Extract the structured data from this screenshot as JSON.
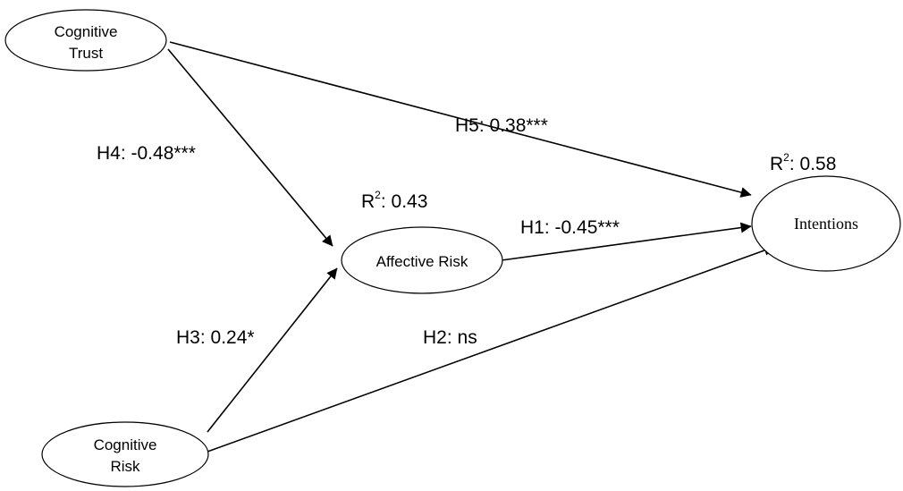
{
  "nodes": {
    "cognitive_trust": {
      "line1": "Cognitive",
      "line2": "Trust"
    },
    "cognitive_risk": {
      "line1": "Cognitive",
      "line2": "Risk"
    },
    "affective_risk": {
      "label": "Affective Risk"
    },
    "intentions": {
      "label": "Intentions"
    }
  },
  "paths": {
    "h1": "H1: -0.45***",
    "h2": "H2: ns",
    "h3": "H3: 0.24*",
    "h4": "H4: -0.48***",
    "h5": "H5: 0.38***"
  },
  "r_squared": {
    "affective_risk": {
      "prefix": "R",
      "sup": "2",
      "value": ": 0.43"
    },
    "intentions": {
      "prefix": "R",
      "sup": "2",
      "value": ": 0.58"
    }
  }
}
